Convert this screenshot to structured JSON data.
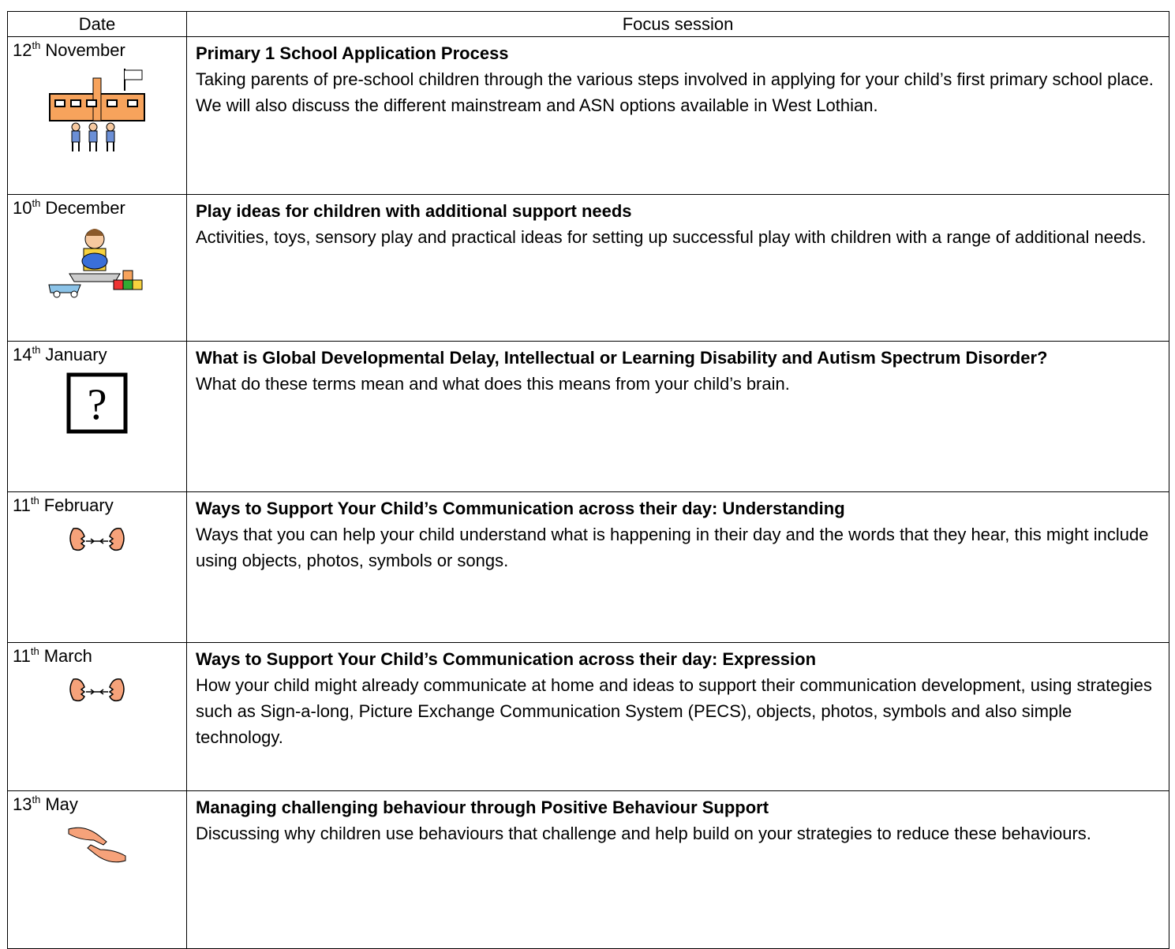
{
  "table": {
    "header": [
      "Date",
      "Focus session"
    ],
    "rows": [
      {
        "day": "12",
        "suffix": "th",
        "month": "November",
        "title": "Primary 1 School Application Process",
        "text": "Taking parents of pre-school children through the various steps involved in applying for your child’s first primary school place.  We will also discuss the different mainstream and ASN options available in West Lothian."
      },
      {
        "day": "10",
        "suffix": "th",
        "month": "December",
        "title": "Play ideas for children with additional support needs",
        "text": "Activities, toys, sensory play and practical ideas for setting up successful play with children with a range of additional needs."
      },
      {
        "day": "14",
        "suffix": "th",
        "month": "January",
        "title": "What is Global Developmental Delay, Intellectual or Learning Disability and Autism Spectrum Disorder?",
        "text": "What do these terms mean and what does this means from your child’s brain."
      },
      {
        "day": "11",
        "suffix": "th",
        "month": "February",
        "title": "Ways to Support Your Child’s Communication across their day: Understanding",
        "text": "Ways that you can help your child understand what is happening in their day and the words that they hear, this might include using objects, photos, symbols or songs."
      },
      {
        "day": "11",
        "suffix": "th",
        "month": "March",
        "title": "Ways to Support Your Child’s Communication across their day: Expression",
        "text": "How your child might already communicate at home and ideas to support their communication development, using strategies such as Sign-a-long, Picture Exchange Communication System (PECS), objects, photos, symbols and also simple technology."
      },
      {
        "day": "13",
        "suffix": "th",
        "month": "May",
        "title": "Managing challenging behaviour through Positive Behaviour Support",
        "text": "Discussing why children use behaviours that challenge and help build on your strategies to reduce these behaviours."
      }
    ]
  }
}
